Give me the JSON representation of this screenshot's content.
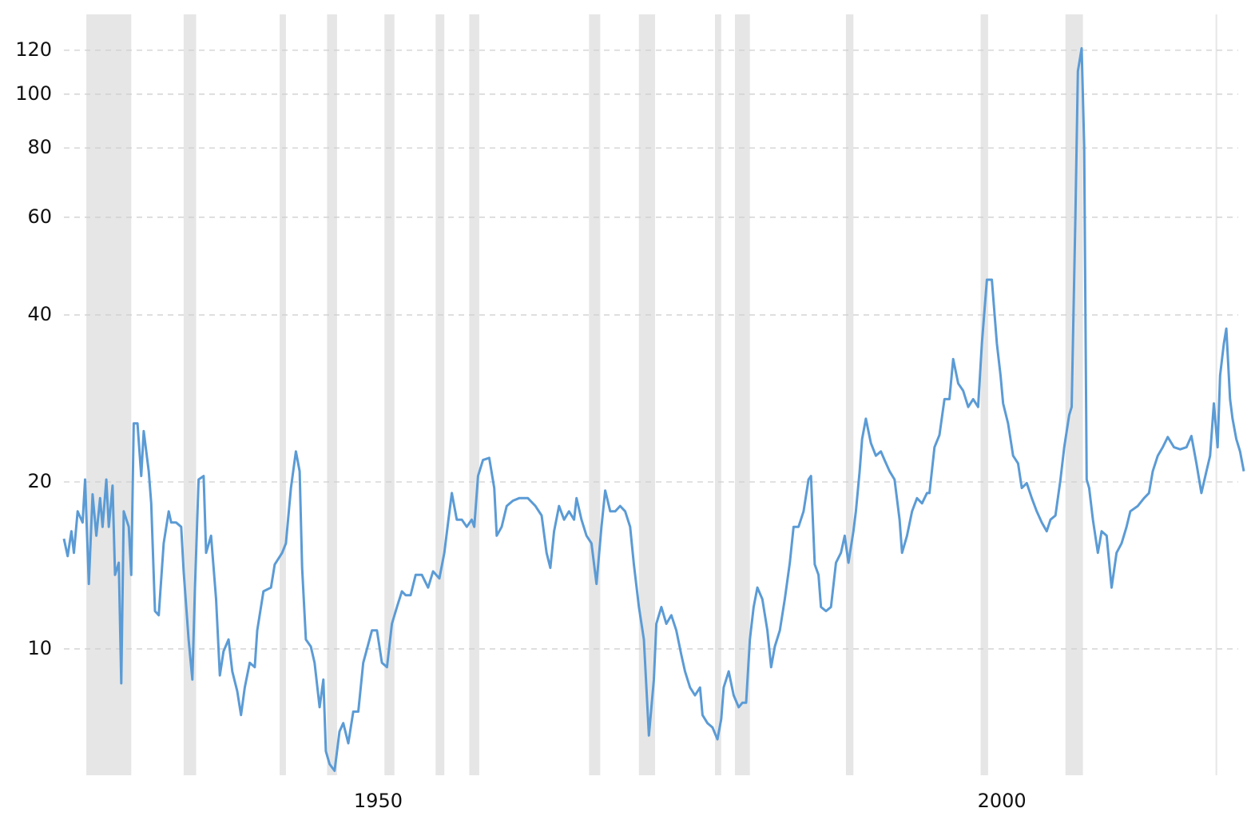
{
  "chart_data": {
    "type": "line",
    "log_scale_y": true,
    "grid": true,
    "color": "#5b9bd5",
    "band_color": "#e6e6e6",
    "xlim": [
      1924.8,
      2019.4
    ],
    "xticks": [
      1950,
      2000
    ],
    "ylim": [
      5.92,
      143
    ],
    "yticks": [
      10,
      20,
      40,
      60,
      80,
      100,
      120
    ],
    "shaded_periods": [
      [
        1926.6,
        1930.2
      ],
      [
        1934.4,
        1935.4
      ],
      [
        1942.1,
        1942.6
      ],
      [
        1945.9,
        1946.7
      ],
      [
        1950.5,
        1951.3
      ],
      [
        1954.6,
        1955.3
      ],
      [
        1957.3,
        1958.1
      ],
      [
        1966.9,
        1967.8
      ],
      [
        1970.9,
        1972.2
      ],
      [
        1977.0,
        1977.5
      ],
      [
        1978.6,
        1979.8
      ],
      [
        1987.5,
        1988.1
      ],
      [
        1998.3,
        1998.9
      ],
      [
        2005.1,
        2006.5
      ]
    ],
    "vline": 2017.2,
    "x": [
      1924.8,
      1925.1,
      1925.4,
      1925.6,
      1925.9,
      1926.3,
      1926.5,
      1926.8,
      1927.1,
      1927.4,
      1927.7,
      1927.9,
      1928.2,
      1928.4,
      1928.7,
      1928.9,
      1929.2,
      1929.4,
      1929.6,
      1930.0,
      1930.2,
      1930.4,
      1930.7,
      1931.0,
      1931.2,
      1931.6,
      1931.8,
      1932.1,
      1932.4,
      1932.8,
      1933.2,
      1933.4,
      1933.8,
      1934.2,
      1934.4,
      1934.8,
      1935.1,
      1935.3,
      1935.6,
      1936.0,
      1936.2,
      1936.6,
      1937.0,
      1937.3,
      1937.6,
      1938.0,
      1938.3,
      1938.7,
      1939.0,
      1939.3,
      1939.7,
      1940.1,
      1940.3,
      1940.8,
      1941.4,
      1941.7,
      1942.3,
      1942.6,
      1943.0,
      1943.4,
      1943.7,
      1943.9,
      1944.2,
      1944.6,
      1944.9,
      1945.3,
      1945.6,
      1945.8,
      1946.1,
      1946.5,
      1946.9,
      1947.2,
      1947.6,
      1948.0,
      1948.4,
      1948.8,
      1949.2,
      1949.5,
      1949.9,
      1950.3,
      1950.7,
      1951.1,
      1951.5,
      1951.9,
      1952.2,
      1952.6,
      1953.0,
      1953.5,
      1954.0,
      1954.4,
      1954.9,
      1955.3,
      1955.6,
      1955.9,
      1956.3,
      1956.7,
      1957.1,
      1957.5,
      1957.7,
      1958.0,
      1958.4,
      1958.9,
      1959.3,
      1959.5,
      1959.9,
      1960.3,
      1960.8,
      1961.3,
      1962.0,
      1962.6,
      1963.1,
      1963.5,
      1963.8,
      1964.1,
      1964.5,
      1964.9,
      1965.3,
      1965.7,
      1965.9,
      1966.3,
      1966.7,
      1967.1,
      1967.5,
      1967.9,
      1968.2,
      1968.6,
      1969.0,
      1969.4,
      1969.8,
      1970.2,
      1970.5,
      1970.9,
      1971.3,
      1971.7,
      1972.1,
      1972.3,
      1972.7,
      1973.1,
      1973.5,
      1973.9,
      1974.3,
      1974.6,
      1975.0,
      1975.4,
      1975.8,
      1976.0,
      1976.4,
      1976.8,
      1977.2,
      1977.5,
      1977.7,
      1978.1,
      1978.5,
      1978.9,
      1979.2,
      1979.5,
      1979.8,
      1980.1,
      1980.4,
      1980.8,
      1981.2,
      1981.5,
      1981.8,
      1982.2,
      1982.6,
      1983.0,
      1983.3,
      1983.7,
      1984.1,
      1984.5,
      1984.7,
      1985.0,
      1985.3,
      1985.5,
      1985.9,
      1986.3,
      1986.7,
      1987.1,
      1987.4,
      1987.7,
      1988.1,
      1988.3,
      1988.6,
      1988.8,
      1989.1,
      1989.5,
      1989.9,
      1990.3,
      1990.6,
      1991.0,
      1991.4,
      1991.8,
      1992.0,
      1992.4,
      1992.8,
      1993.2,
      1993.6,
      1994.0,
      1994.2,
      1994.6,
      1995.0,
      1995.4,
      1995.8,
      1996.1,
      1996.5,
      1996.9,
      1997.3,
      1997.7,
      1998.1,
      1998.4,
      1998.8,
      1999.2,
      1999.6,
      1999.9,
      2000.1,
      2000.5,
      2000.9,
      2001.3,
      2001.6,
      2002.0,
      2002.4,
      2002.8,
      2003.2,
      2003.6,
      2003.9,
      2004.3,
      2004.7,
      2005.0,
      2005.4,
      2005.6,
      2005.9,
      2006.1,
      2006.4,
      2006.6,
      2006.8,
      2007.0,
      2007.3,
      2007.7,
      2008.0,
      2008.4,
      2008.8,
      2009.2,
      2009.6,
      2010.0,
      2010.3,
      2010.9,
      2011.4,
      2011.8,
      2012.1,
      2012.5,
      2012.9,
      2013.3,
      2013.8,
      2014.3,
      2014.8,
      2015.2,
      2015.6,
      2016.0,
      2016.4,
      2016.7,
      2017.0,
      2017.3,
      2017.5,
      2017.8,
      2018.0,
      2018.3,
      2018.5,
      2018.8,
      2019.1,
      2019.4
    ],
    "values": [
      15.8,
      14.7,
      16.3,
      14.9,
      17.7,
      16.9,
      20.2,
      13.1,
      19.0,
      16.0,
      18.7,
      16.6,
      20.2,
      16.6,
      19.7,
      13.6,
      14.3,
      8.67,
      17.7,
      16.6,
      13.6,
      25.5,
      25.5,
      20.5,
      24.7,
      20.9,
      18.3,
      11.7,
      11.5,
      15.5,
      17.7,
      16.9,
      16.9,
      16.6,
      13.8,
      10.4,
      8.81,
      12.7,
      20.2,
      20.5,
      14.9,
      16.0,
      12.3,
      8.96,
      9.9,
      10.4,
      9.11,
      8.39,
      7.6,
      8.52,
      9.44,
      9.27,
      10.8,
      12.7,
      12.9,
      14.2,
      14.9,
      15.5,
      19.5,
      22.7,
      20.9,
      14.0,
      10.4,
      10.1,
      9.44,
      7.85,
      8.81,
      6.54,
      6.2,
      6.03,
      7.1,
      7.35,
      6.76,
      7.71,
      7.71,
      9.44,
      10.2,
      10.8,
      10.8,
      9.44,
      9.27,
      11.1,
      11.9,
      12.7,
      12.5,
      12.5,
      13.6,
      13.6,
      12.9,
      13.8,
      13.4,
      14.9,
      16.9,
      19.1,
      17.1,
      17.1,
      16.6,
      17.1,
      16.6,
      20.5,
      21.9,
      22.1,
      19.5,
      16.0,
      16.6,
      18.1,
      18.5,
      18.7,
      18.7,
      18.1,
      17.4,
      14.9,
      14.0,
      16.3,
      18.1,
      17.1,
      17.7,
      17.1,
      18.7,
      17.1,
      16.0,
      15.5,
      13.1,
      16.6,
      19.3,
      17.7,
      17.7,
      18.1,
      17.7,
      16.6,
      14.2,
      11.9,
      10.4,
      6.98,
      8.81,
      11.1,
      11.9,
      11.1,
      11.5,
      10.8,
      9.77,
      9.11,
      8.52,
      8.25,
      8.52,
      7.6,
      7.35,
      7.22,
      6.87,
      7.47,
      8.52,
      9.11,
      8.25,
      7.85,
      8.0,
      8.0,
      10.4,
      11.9,
      12.9,
      12.3,
      10.8,
      9.27,
      10.1,
      10.8,
      12.3,
      14.3,
      16.6,
      16.6,
      17.7,
      20.2,
      20.5,
      14.2,
      13.6,
      11.9,
      11.7,
      11.9,
      14.3,
      14.9,
      16.0,
      14.3,
      16.3,
      17.7,
      20.9,
      23.9,
      26.0,
      23.5,
      22.3,
      22.7,
      21.9,
      20.9,
      20.2,
      17.1,
      14.9,
      16.0,
      17.7,
      18.7,
      18.3,
      19.1,
      19.1,
      23.1,
      24.3,
      28.2,
      28.2,
      33.3,
      30.1,
      29.2,
      27.3,
      28.2,
      27.3,
      35.5,
      46.3,
      46.3,
      35.5,
      31.1,
      27.7,
      25.5,
      22.3,
      21.6,
      19.5,
      19.9,
      18.7,
      17.7,
      16.9,
      16.3,
      17.1,
      17.4,
      20.2,
      23.1,
      26.4,
      27.3,
      60.4,
      110,
      121,
      80.5,
      20.2,
      19.5,
      17.1,
      14.9,
      16.3,
      16.0,
      12.9,
      14.9,
      15.5,
      16.6,
      17.7,
      18.1,
      18.7,
      19.1,
      20.9,
      22.3,
      23.1,
      24.1,
      23.1,
      22.9,
      23.1,
      24.2,
      21.6,
      19.1,
      20.9,
      22.3,
      27.7,
      23.1,
      31.1,
      35.5,
      37.8,
      28.2,
      26.0,
      23.9,
      22.7,
      20.9
    ]
  }
}
